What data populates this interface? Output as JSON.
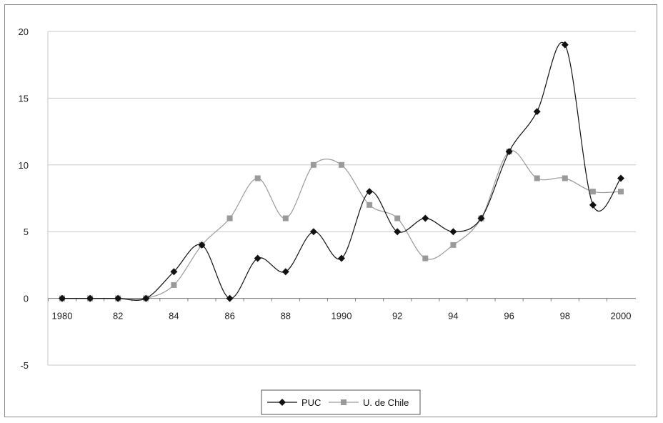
{
  "chart_data": {
    "type": "line",
    "title": "",
    "xlabel": "",
    "ylabel": "",
    "x": [
      1980,
      1981,
      1982,
      1983,
      1984,
      1985,
      1986,
      1987,
      1988,
      1989,
      1990,
      1991,
      1992,
      1993,
      1994,
      1995,
      1996,
      1997,
      1998,
      1999,
      2000
    ],
    "x_tick_labels": [
      {
        "x": 1980,
        "label": "1980"
      },
      {
        "x": 1982,
        "label": "82"
      },
      {
        "x": 1984,
        "label": "84"
      },
      {
        "x": 1986,
        "label": "86"
      },
      {
        "x": 1988,
        "label": "88"
      },
      {
        "x": 1990,
        "label": "1990"
      },
      {
        "x": 1992,
        "label": "92"
      },
      {
        "x": 1994,
        "label": "94"
      },
      {
        "x": 1996,
        "label": "96"
      },
      {
        "x": 1998,
        "label": "98"
      },
      {
        "x": 2000,
        "label": "2000"
      }
    ],
    "y_ticks": [
      "-5",
      "0",
      "5",
      "10",
      "15",
      "20"
    ],
    "ylim": [
      -5,
      20
    ],
    "grid": "horizontal",
    "legend_position": "bottom",
    "series": [
      {
        "name": "PUC",
        "color": "#111111",
        "marker": "diamond",
        "values": [
          0,
          0,
          0,
          0,
          2,
          4,
          0,
          3,
          2,
          5,
          3,
          8,
          5,
          6,
          5,
          6,
          11,
          14,
          19,
          7,
          9
        ]
      },
      {
        "name": "U. de Chile",
        "color": "#9a9a9a",
        "marker": "square",
        "values": [
          0,
          0,
          0,
          0,
          1,
          4,
          6,
          9,
          6,
          10,
          10,
          7,
          6,
          3,
          4,
          6,
          11,
          9,
          9,
          8,
          8
        ]
      }
    ]
  }
}
